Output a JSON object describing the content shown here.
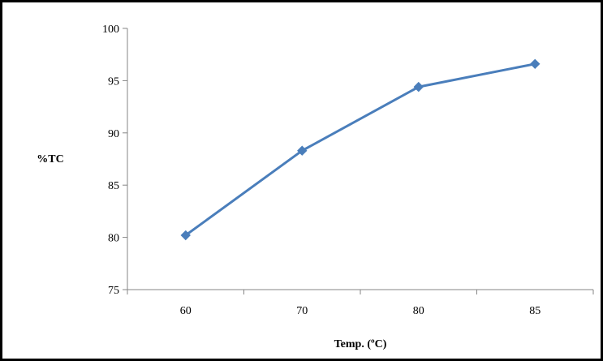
{
  "chart_data": {
    "type": "line",
    "categories": [
      "60",
      "70",
      "80",
      "85"
    ],
    "series": [
      {
        "values": [
          80.2,
          88.3,
          94.4,
          96.6
        ]
      }
    ],
    "xlabel": "Temp. (ºC)",
    "ylabel": "%TC",
    "ylim": [
      75,
      100
    ],
    "yticks": [
      75,
      80,
      85,
      90,
      95,
      100
    ],
    "grid": false,
    "legend": "none",
    "colors": {
      "series": "#4a7ebb",
      "axis": "#868686",
      "border": "#000000"
    }
  }
}
